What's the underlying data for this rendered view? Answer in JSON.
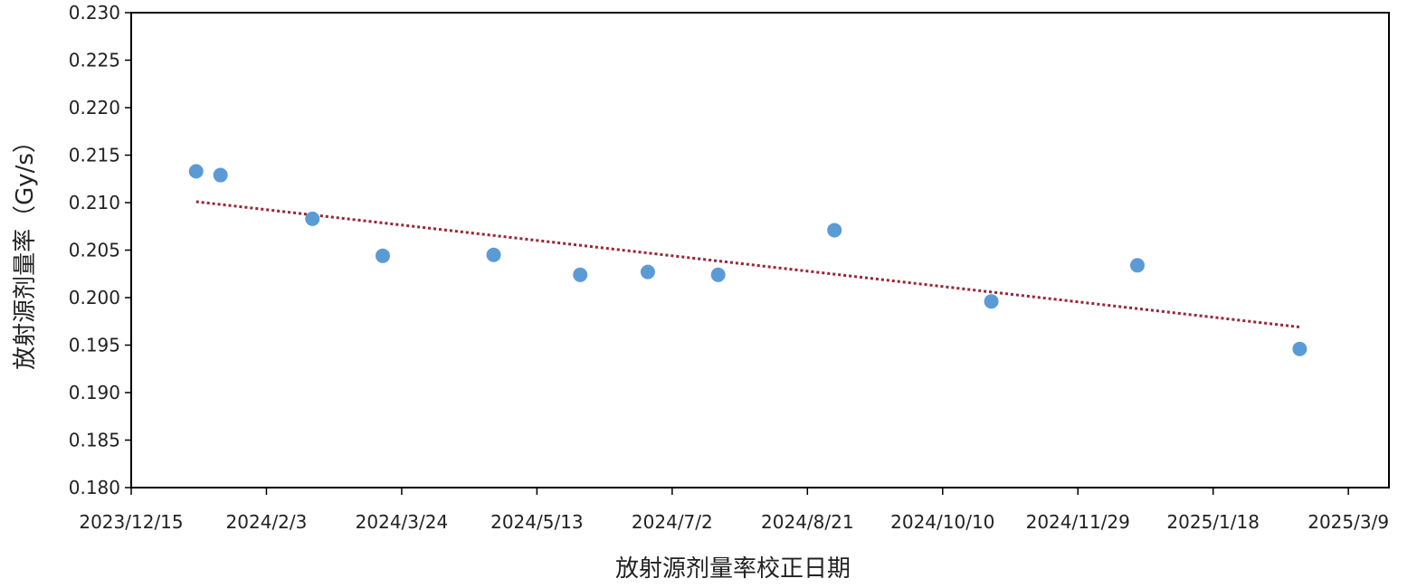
{
  "chart_data": {
    "type": "scatter",
    "xlabel": "放射源剂量率校正日期",
    "ylabel": "放射源剂量率（Gy/s）",
    "x_axis": {
      "type": "date",
      "range": [
        "2023-12-15",
        "2025-03-24"
      ],
      "ticks": [
        "2023-12-15",
        "2024-02-03",
        "2024-03-24",
        "2024-05-13",
        "2024-07-02",
        "2024-08-21",
        "2024-10-10",
        "2024-11-29",
        "2025-01-18",
        "2025-03-09"
      ],
      "tick_labels": [
        "2023/12/15",
        "2024/2/3",
        "2024/3/24",
        "2024/5/13",
        "2024/7/2",
        "2024/8/21",
        "2024/10/10",
        "2024/11/29",
        "2025/1/18",
        "2025/3/9"
      ]
    },
    "y_axis": {
      "range": [
        0.18,
        0.23
      ],
      "ticks": [
        0.18,
        0.185,
        0.19,
        0.195,
        0.2,
        0.205,
        0.21,
        0.215,
        0.22,
        0.225,
        0.23
      ],
      "tick_labels": [
        "0.180",
        "0.185",
        "0.190",
        "0.195",
        "0.200",
        "0.205",
        "0.210",
        "0.215",
        "0.220",
        "0.225",
        "0.230"
      ]
    },
    "grid": false,
    "series": [
      {
        "color": "#5b9bd5",
        "points": [
          {
            "x": "2024-01-08",
            "y": 0.2133
          },
          {
            "x": "2024-01-17",
            "y": 0.2129
          },
          {
            "x": "2024-02-20",
            "y": 0.2083
          },
          {
            "x": "2024-03-17",
            "y": 0.2044
          },
          {
            "x": "2024-04-27",
            "y": 0.2045
          },
          {
            "x": "2024-05-29",
            "y": 0.2024
          },
          {
            "x": "2024-06-23",
            "y": 0.2027
          },
          {
            "x": "2024-07-19",
            "y": 0.2024
          },
          {
            "x": "2024-08-31",
            "y": 0.2071
          },
          {
            "x": "2024-10-28",
            "y": 0.1996
          },
          {
            "x": "2024-12-21",
            "y": 0.2034
          },
          {
            "x": "2025-02-19",
            "y": 0.1946
          }
        ]
      }
    ],
    "trendline": {
      "type": "linear",
      "style": "dotted",
      "color": "#9b2335",
      "start": {
        "x": "2024-01-08",
        "y": 0.2101
      },
      "end": {
        "x": "2025-02-19",
        "y": 0.1969
      }
    }
  }
}
